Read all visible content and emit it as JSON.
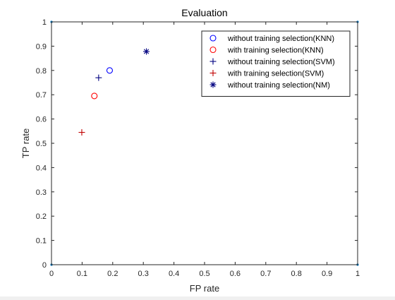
{
  "chart_data": {
    "type": "scatter",
    "title": "Evaluation",
    "xlabel": "FP rate",
    "ylabel": "TP rate",
    "xlim": [
      0,
      1
    ],
    "ylim": [
      0,
      1
    ],
    "xticks": [
      0,
      0.1,
      0.2,
      0.3,
      0.4,
      0.5,
      0.6,
      0.7,
      0.8,
      0.9,
      1
    ],
    "xtick_labels": [
      "0",
      "0.1",
      "0.2",
      "0.3",
      "0.4",
      "0.5",
      "0.6",
      "0.7",
      "0.8",
      "0.9",
      "1"
    ],
    "yticks": [
      0,
      0.1,
      0.2,
      0.3,
      0.4,
      0.5,
      0.6,
      0.7,
      0.8,
      0.9,
      1
    ],
    "ytick_labels": [
      "0",
      "0.1",
      "0.2",
      "0.3",
      "0.4",
      "0.5",
      "0.6",
      "0.7",
      "0.8",
      "0.9",
      "1"
    ],
    "grid": false,
    "legend_position": "top-right",
    "series": [
      {
        "name": "without training selection(KNN)",
        "marker": "circle",
        "color": "#0000ff",
        "x": [
          0.19
        ],
        "y": [
          0.8
        ]
      },
      {
        "name": "with training selection(KNN)",
        "marker": "circle",
        "color": "#ff0000",
        "x": [
          0.14
        ],
        "y": [
          0.695
        ]
      },
      {
        "name": "without training selection(SVM)",
        "marker": "plus",
        "color": "#000080",
        "x": [
          0.154
        ],
        "y": [
          0.77
        ]
      },
      {
        "name": "with training selection(SVM)",
        "marker": "plus",
        "color": "#c00000",
        "x": [
          0.099
        ],
        "y": [
          0.545
        ]
      },
      {
        "name": "without training selection(NM)",
        "marker": "asterisk",
        "color": "#000080",
        "x": [
          0.31
        ],
        "y": [
          0.878
        ]
      }
    ],
    "corner_markers": {
      "color": "#0072bd",
      "x": [
        0,
        0,
        1,
        1
      ],
      "y": [
        0,
        1,
        0,
        1
      ]
    }
  }
}
